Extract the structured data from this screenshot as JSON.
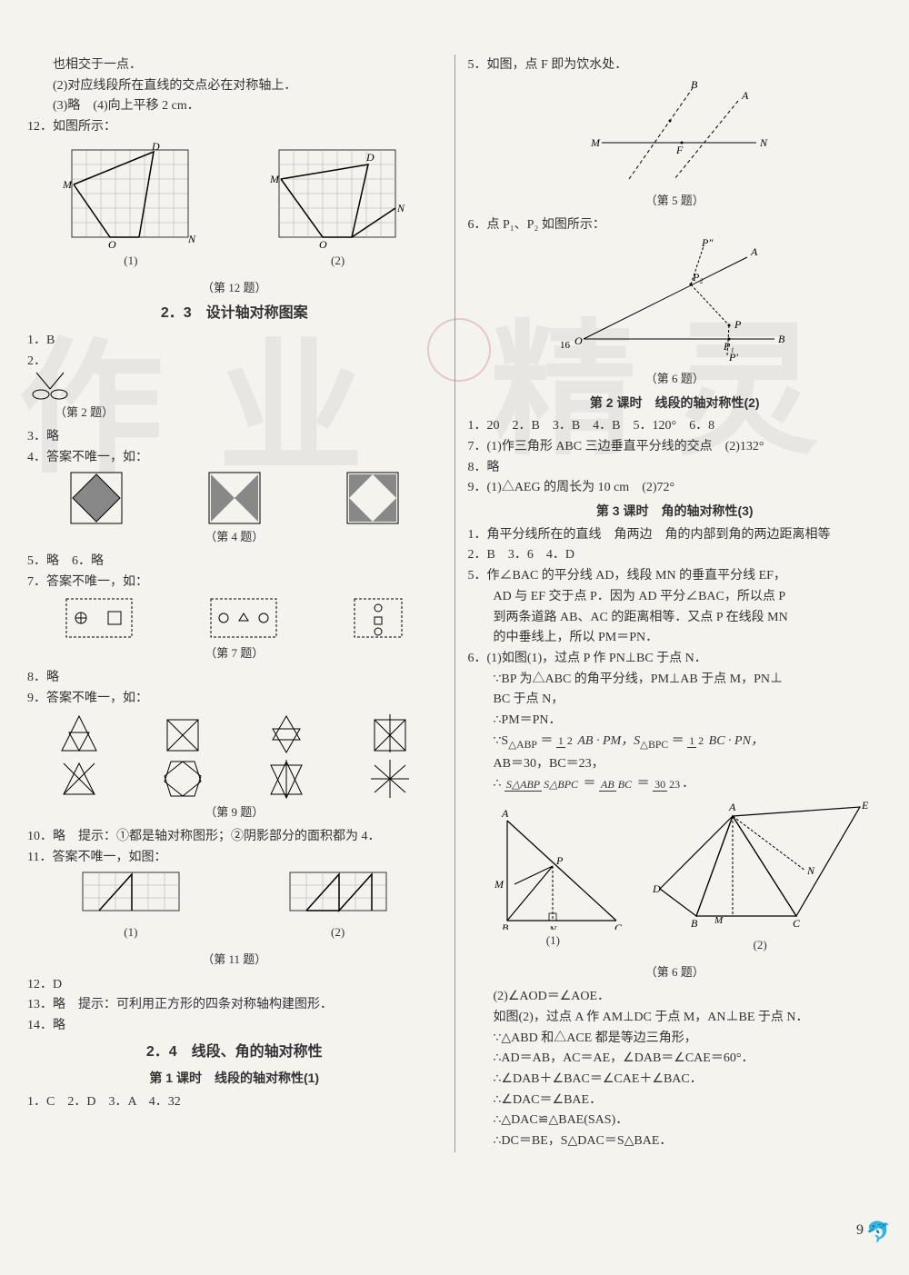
{
  "watermark": {
    "c1": "作",
    "c2": "业",
    "c3": "精",
    "c4": "灵"
  },
  "page_number": "9",
  "left": {
    "pre": [
      "也相交于一点．",
      "(2)对应线段所在直线的交点必在对称轴上．",
      "(3)略　(4)向上平移 2 cm．"
    ],
    "q12_label": "12．如图所示：",
    "fig12": {
      "grid": {
        "cols": 8,
        "rows": 6,
        "cell": 16
      },
      "labels_a": {
        "M": "M",
        "D": "D",
        "O": "O",
        "N": "N",
        "sub": "(1)"
      },
      "labels_b": {
        "M": "M",
        "D": "D",
        "O": "O",
        "N": "N",
        "sub": "(2)"
      },
      "caption": "（第 12 题）"
    },
    "sec23_title": "2．3　设计轴对称图案",
    "q1": "1．B",
    "q2_label": "2．",
    "q2_caption": "（第 2 题）",
    "q3": "3．略",
    "q4_label": "4．答案不唯一，如：",
    "q4_caption": "（第 4 题）",
    "q5": "5．略　6．略",
    "q7_label": "7．答案不唯一，如：",
    "q7_caption": "（第 7 题）",
    "q8": "8．略",
    "q9_label": "9．答案不唯一，如：",
    "q9_caption": "（第 9 题）",
    "q10": "10．略　提示：①都是轴对称图形；②阴影部分的面积都为 4．",
    "q11_label": "11．答案不唯一，如图：",
    "q11_sub1": "(1)",
    "q11_sub2": "(2)",
    "q11_caption": "（第 11 题）",
    "q12b": "12．D",
    "q13": "13．略　提示：可利用正方形的四条对称轴构建图形．",
    "q14": "14．略",
    "sec24_title": "2．4　线段、角的轴对称性",
    "sec24_sub1": "第 1 课时　线段的轴对称性(1)",
    "sec24_ans1": "1．C　2．D　3．A　4．32"
  },
  "right": {
    "q5_label": "5．如图，点 F 即为饮水处．",
    "fig5": {
      "labels": {
        "B": "B",
        "A": "A",
        "M": "M",
        "N": "N",
        "F": "F"
      },
      "caption": "（第 5 题）"
    },
    "q6_label": "6．点 P₁、P₂ 如图所示：",
    "fig6": {
      "labels": {
        "Ppp": "P″",
        "A": "A",
        "P2": "P₂",
        "O": "O",
        "P": "P",
        "B": "B",
        "P1": "P₁",
        "Pp": "P′",
        "num": "16"
      },
      "caption": "（第 6 题）"
    },
    "sub2_title": "第 2 课时　线段的轴对称性(2)",
    "l2_1": "1．20　2．B　3．B　4．B　5．120°　6．8",
    "l2_2": "7．(1)作三角形 ABC 三边垂直平分线的交点　(2)132°",
    "l2_3": "8．略",
    "l2_4": "9．(1)△AEG 的周长为 10 cm　(2)72°",
    "sub3_title": "第 3 课时　角的轴对称性(3)",
    "l3_1": "1．角平分线所在的直线　角两边　角的内部到角的两边距离相等",
    "l3_2": "2．B　3．6　4．D",
    "l3_5a": "5．作∠BAC 的平分线 AD，线段 MN 的垂直平分线 EF，",
    "l3_5b": "AD 与 EF 交于点 P．因为 AD 平分∠BAC，所以点 P",
    "l3_5c": "到两条道路 AB、AC 的距离相等．又点 P 在线段 MN",
    "l3_5d": "的中垂线上，所以 PM＝PN．",
    "l3_6a": "6．(1)如图(1)，过点 P 作 PN⊥BC 于点 N．",
    "l3_6b": "∵BP 为△ABC 的角平分线，PM⊥AB 于点 M，PN⊥",
    "l3_6c": "BC 于点 N，",
    "l3_6d": "∴PM＝PN．",
    "l3_6e_pref": "∵S",
    "l3_6e_mid": "＝",
    "l3_6f": "AB＝30，BC＝23，",
    "l3_6g_pref": "∴",
    "l3_6g_eq": "＝",
    "frac_half": {
      "n": "1",
      "d": "2"
    },
    "frac_ab": {
      "n": "AB",
      "d": "BC"
    },
    "frac_s": {
      "n": "S△ABP",
      "d": "S△BPC"
    },
    "frac_3023": {
      "n": "30",
      "d": "23"
    },
    "sub_abp": "△ABP",
    "sub_bpc": "△BPC",
    "math_ab_pm": "AB · PM，S",
    "math_bc_pn": "BC · PN，",
    "fig6b": {
      "labels1": {
        "A": "A",
        "P": "P",
        "M": "M",
        "B": "B",
        "N": "N",
        "C": "C",
        "sub": "(1)"
      },
      "labels2": {
        "A": "A",
        "E": "E",
        "M": "M",
        "D": "D",
        "N": "N",
        "B": "B",
        "C": "C",
        "sub": "(2)"
      },
      "caption": "（第 6 题）"
    },
    "l6_2a": "(2)∠AOD＝∠AOE．",
    "l6_2b": "如图(2)，过点 A 作 AM⊥DC 于点 M，AN⊥BE 于点 N．",
    "l6_2c": "∵△ABD 和△ACE 都是等边三角形，",
    "l6_2d": "∴AD＝AB，AC＝AE，∠DAB＝∠CAE＝60°．",
    "l6_2e": "∴∠DAB＋∠BAC＝∠CAE＋∠BAC．",
    "l6_2f": "∴∠DAC＝∠BAE．",
    "l6_2g": "∴△DAC≌△BAE(SAS)．",
    "l6_2h": "∴DC＝BE，S△DAC＝S△BAE．"
  }
}
